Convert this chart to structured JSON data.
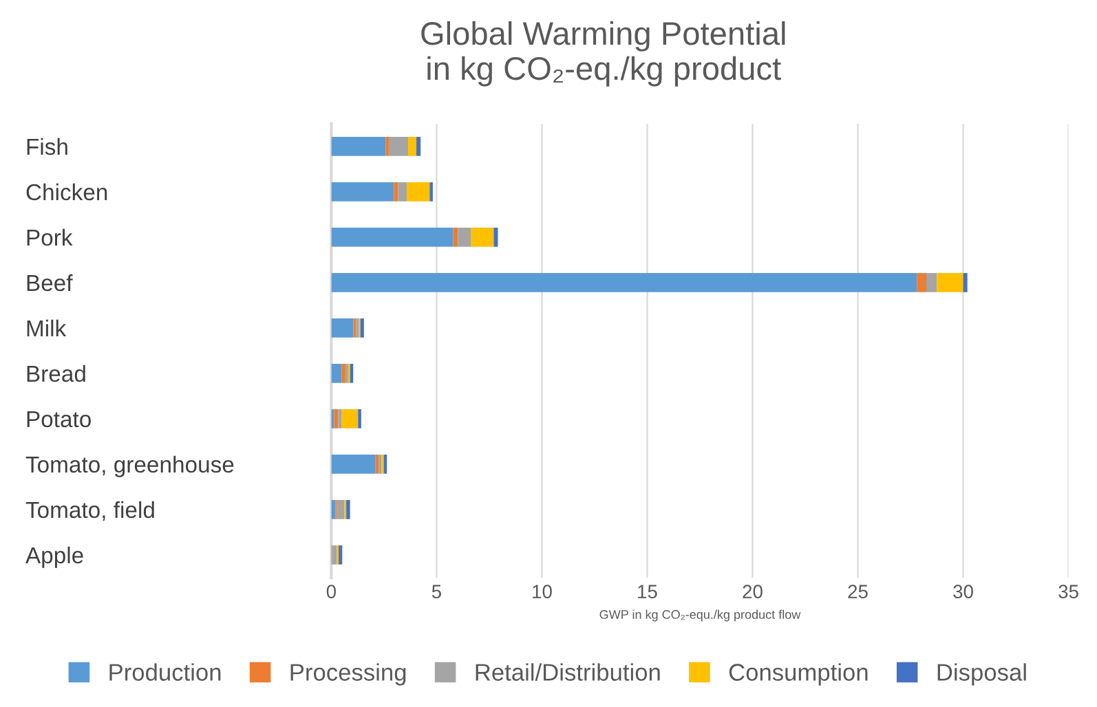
{
  "chart_data": {
    "type": "bar",
    "orientation": "horizontal",
    "stacked": true,
    "title": "Global Warming Potential\nin kg CO₂-eq./kg product",
    "xlabel": "GWP in kg CO₂-equ./kg product flow",
    "categories": [
      "Fish",
      "Chicken",
      "Pork",
      "Beef",
      "Milk",
      "Bread",
      "Potato",
      "Tomato, greenhouse",
      "Tomato, field",
      "Apple"
    ],
    "series": [
      {
        "name": "Production",
        "color": "#5b9bd5",
        "values": [
          2.58,
          2.97,
          5.79,
          27.8,
          1.05,
          0.5,
          0.13,
          2.1,
          0.2,
          0.04
        ]
      },
      {
        "name": "Processing",
        "color": "#ed7d31",
        "values": [
          0.15,
          0.2,
          0.22,
          0.45,
          0.13,
          0.17,
          0.2,
          0.15,
          0.07,
          0.02
        ]
      },
      {
        "name": "Retail/Distribution",
        "color": "#a5a5a5",
        "values": [
          0.92,
          0.41,
          0.61,
          0.5,
          0.13,
          0.13,
          0.15,
          0.13,
          0.35,
          0.2
        ]
      },
      {
        "name": "Consumption",
        "color": "#ffc000",
        "values": [
          0.39,
          1.09,
          1.09,
          1.25,
          0.07,
          0.09,
          0.79,
          0.11,
          0.09,
          0.09
        ]
      },
      {
        "name": "Disposal",
        "color": "#4472c4",
        "values": [
          0.2,
          0.15,
          0.2,
          0.2,
          0.17,
          0.15,
          0.15,
          0.15,
          0.18,
          0.17
        ]
      }
    ],
    "xlim": [
      0,
      35
    ],
    "xticks": [
      0,
      5,
      10,
      15,
      20,
      25,
      30,
      35
    ],
    "grid": "x",
    "legend": "bottom"
  }
}
